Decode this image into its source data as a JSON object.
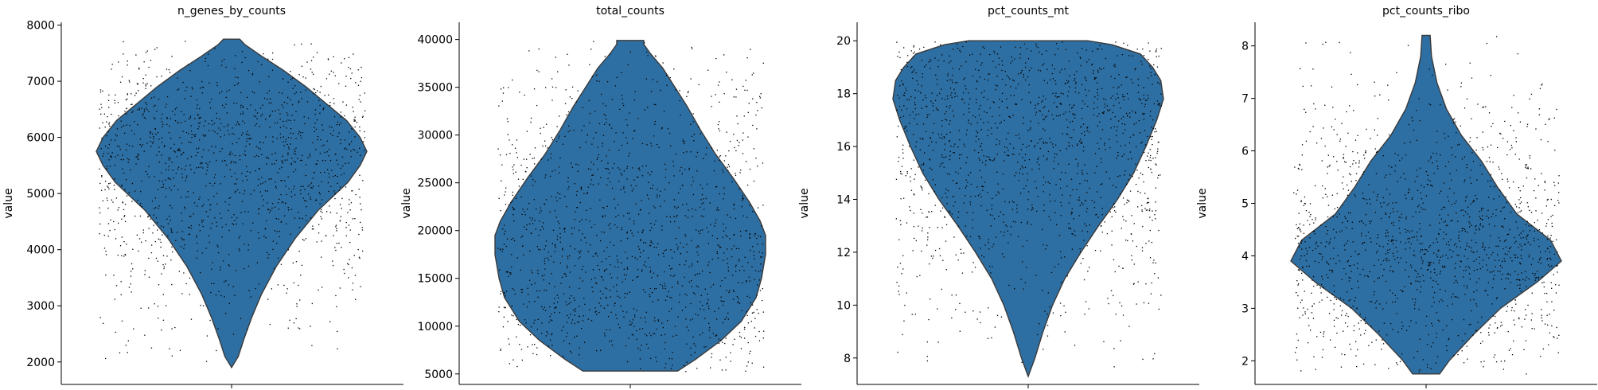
{
  "chart_data": [
    {
      "type": "violin",
      "title": "n_genes_by_counts",
      "xlabel": "",
      "ylabel": "value",
      "ylim": [
        1600,
        8050
      ],
      "yticks": [
        2000,
        3000,
        4000,
        5000,
        6000,
        7000,
        8000
      ],
      "tick_labels": [
        "2000",
        "3000",
        "4000",
        "5000",
        "6000",
        "7000",
        "8000"
      ],
      "data_min": 1900,
      "data_max": 7750,
      "density": [
        [
          1900,
          0.0
        ],
        [
          2100,
          0.05
        ],
        [
          2400,
          0.09
        ],
        [
          2800,
          0.15
        ],
        [
          3200,
          0.22
        ],
        [
          3700,
          0.33
        ],
        [
          4200,
          0.47
        ],
        [
          4700,
          0.64
        ],
        [
          5200,
          0.86
        ],
        [
          5500,
          0.95
        ],
        [
          5750,
          1.0
        ],
        [
          6000,
          0.95
        ],
        [
          6300,
          0.85
        ],
        [
          6600,
          0.7
        ],
        [
          6900,
          0.55
        ],
        [
          7200,
          0.38
        ],
        [
          7450,
          0.22
        ],
        [
          7650,
          0.1
        ],
        [
          7750,
          0.06
        ]
      ],
      "n_points": 1400,
      "color": "#2e6fa3"
    },
    {
      "type": "violin",
      "title": "total_counts",
      "xlabel": "",
      "ylabel": "value",
      "ylim": [
        3900,
        41800
      ],
      "yticks": [
        5000,
        10000,
        15000,
        20000,
        25000,
        30000,
        35000,
        40000
      ],
      "tick_labels": [
        "5000",
        "10000",
        "15000",
        "20000",
        "25000",
        "30000",
        "35000",
        "40000"
      ],
      "data_min": 5300,
      "data_max": 39900,
      "density": [
        [
          5300,
          0.35
        ],
        [
          6500,
          0.48
        ],
        [
          8500,
          0.67
        ],
        [
          10500,
          0.82
        ],
        [
          13000,
          0.93
        ],
        [
          15000,
          0.97
        ],
        [
          17500,
          1.0
        ],
        [
          19500,
          1.0
        ],
        [
          21000,
          0.96
        ],
        [
          23000,
          0.88
        ],
        [
          25500,
          0.76
        ],
        [
          28000,
          0.63
        ],
        [
          30500,
          0.52
        ],
        [
          33000,
          0.42
        ],
        [
          35000,
          0.33
        ],
        [
          37000,
          0.24
        ],
        [
          38500,
          0.15
        ],
        [
          39500,
          0.1
        ],
        [
          39900,
          0.1
        ]
      ],
      "n_points": 1400,
      "color": "#2e6fa3"
    },
    {
      "type": "violin",
      "title": "pct_counts_mt",
      "xlabel": "",
      "ylabel": "value",
      "ylim": [
        7.0,
        20.7
      ],
      "yticks": [
        8,
        10,
        12,
        14,
        16,
        18,
        20
      ],
      "tick_labels": [
        "8",
        "10",
        "12",
        "14",
        "16",
        "18",
        "20"
      ],
      "data_min": 7.3,
      "data_max": 20.0,
      "density": [
        [
          7.3,
          0.0
        ],
        [
          8.0,
          0.05
        ],
        [
          9.0,
          0.11
        ],
        [
          10.0,
          0.18
        ],
        [
          11.0,
          0.27
        ],
        [
          12.0,
          0.39
        ],
        [
          13.0,
          0.52
        ],
        [
          14.0,
          0.66
        ],
        [
          15.0,
          0.78
        ],
        [
          16.0,
          0.87
        ],
        [
          17.0,
          0.95
        ],
        [
          17.8,
          1.0
        ],
        [
          18.5,
          0.98
        ],
        [
          19.0,
          0.92
        ],
        [
          19.5,
          0.83
        ],
        [
          19.85,
          0.62
        ],
        [
          20.0,
          0.44
        ]
      ],
      "n_points": 1400,
      "color": "#2e6fa3"
    },
    {
      "type": "violin",
      "title": "pct_counts_ribo",
      "xlabel": "",
      "ylabel": "value",
      "ylim": [
        1.55,
        8.45
      ],
      "yticks": [
        2,
        3,
        4,
        5,
        6,
        7,
        8
      ],
      "tick_labels": [
        "2",
        "3",
        "4",
        "5",
        "6",
        "7",
        "8"
      ],
      "data_min": 1.75,
      "data_max": 8.2,
      "density": [
        [
          1.75,
          0.1
        ],
        [
          2.0,
          0.17
        ],
        [
          2.5,
          0.35
        ],
        [
          3.0,
          0.55
        ],
        [
          3.5,
          0.82
        ],
        [
          3.9,
          1.0
        ],
        [
          4.3,
          0.92
        ],
        [
          4.8,
          0.67
        ],
        [
          5.3,
          0.53
        ],
        [
          5.8,
          0.41
        ],
        [
          6.3,
          0.26
        ],
        [
          6.8,
          0.15
        ],
        [
          7.3,
          0.08
        ],
        [
          7.8,
          0.04
        ],
        [
          8.2,
          0.03
        ]
      ],
      "n_points": 1400,
      "color": "#2e6fa3"
    }
  ]
}
